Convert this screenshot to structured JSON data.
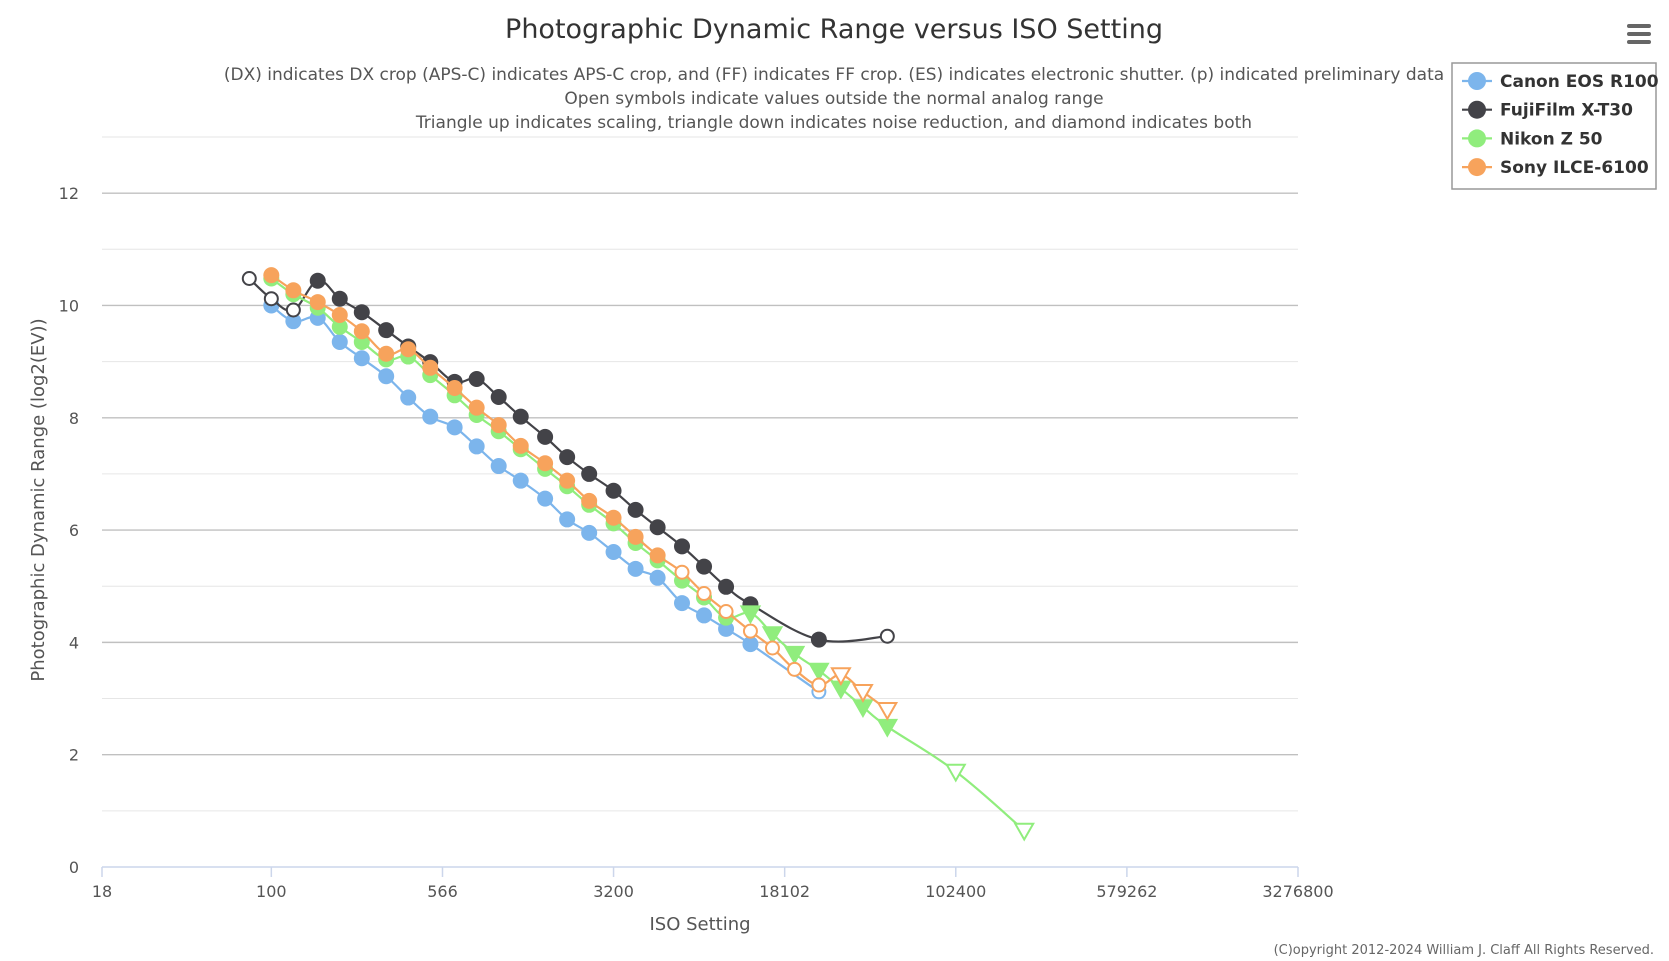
{
  "chart_data": {
    "type": "line",
    "title": "Photographic Dynamic Range versus ISO Setting",
    "subtitle": [
      "(DX) indicates DX crop (APS-C) indicates APS-C crop, and (FF) indicates FF crop. (ES) indicates electronic shutter. (p) indicated preliminary data",
      "Open symbols indicate values outside the normal analog range",
      "Triangle up indicates scaling, triangle down indicates noise reduction, and diamond indicates both"
    ],
    "xlabel": "ISO Setting",
    "ylabel": "Photographic Dynamic Range (log2(EV))",
    "x_scale": "log",
    "xlim": [
      18,
      3276800
    ],
    "x_ticks": [
      18,
      100,
      566,
      3200,
      18102,
      102400,
      579262,
      3276800
    ],
    "x_tick_labels": [
      "18",
      "100",
      "566",
      "3200",
      "18102",
      "102400",
      "579262",
      "3276800"
    ],
    "ylim": [
      0,
      13
    ],
    "y_ticks": [
      0,
      2,
      4,
      6,
      8,
      10,
      12
    ],
    "y_tick_labels": [
      "0",
      "2",
      "4",
      "6",
      "8",
      "10",
      "12"
    ],
    "legend_position": "top-right",
    "credit": "(C)opyright 2012-2024 William J. Claff All Rights Reserved.",
    "series": [
      {
        "name": "Canon EOS R100",
        "color": "#7cb5ec",
        "points": [
          {
            "x": 100,
            "y": 10.0,
            "marker": "circle",
            "open": false
          },
          {
            "x": 125,
            "y": 9.72,
            "marker": "circle",
            "open": false
          },
          {
            "x": 160,
            "y": 9.78,
            "marker": "circle",
            "open": false
          },
          {
            "x": 200,
            "y": 9.35,
            "marker": "circle",
            "open": false
          },
          {
            "x": 250,
            "y": 9.06,
            "marker": "circle",
            "open": false
          },
          {
            "x": 320,
            "y": 8.74,
            "marker": "circle",
            "open": false
          },
          {
            "x": 400,
            "y": 8.36,
            "marker": "circle",
            "open": false
          },
          {
            "x": 500,
            "y": 8.02,
            "marker": "circle",
            "open": false
          },
          {
            "x": 640,
            "y": 7.83,
            "marker": "circle",
            "open": false
          },
          {
            "x": 800,
            "y": 7.49,
            "marker": "circle",
            "open": false
          },
          {
            "x": 1000,
            "y": 7.14,
            "marker": "circle",
            "open": false
          },
          {
            "x": 1250,
            "y": 6.88,
            "marker": "circle",
            "open": false
          },
          {
            "x": 1600,
            "y": 6.56,
            "marker": "circle",
            "open": false
          },
          {
            "x": 2000,
            "y": 6.19,
            "marker": "circle",
            "open": false
          },
          {
            "x": 2500,
            "y": 5.95,
            "marker": "circle",
            "open": false
          },
          {
            "x": 3200,
            "y": 5.61,
            "marker": "circle",
            "open": false
          },
          {
            "x": 4000,
            "y": 5.31,
            "marker": "circle",
            "open": false
          },
          {
            "x": 5000,
            "y": 5.15,
            "marker": "circle",
            "open": false
          },
          {
            "x": 6400,
            "y": 4.7,
            "marker": "circle",
            "open": false
          },
          {
            "x": 8000,
            "y": 4.48,
            "marker": "circle",
            "open": false
          },
          {
            "x": 10000,
            "y": 4.24,
            "marker": "circle",
            "open": false
          },
          {
            "x": 12800,
            "y": 3.97,
            "marker": "circle",
            "open": false
          },
          {
            "x": 25600,
            "y": 3.12,
            "marker": "circle",
            "open": true
          }
        ]
      },
      {
        "name": "FujiFilm X-T30",
        "color": "#434348",
        "points": [
          {
            "x": 80,
            "y": 10.48,
            "marker": "circle",
            "open": true
          },
          {
            "x": 100,
            "y": 10.12,
            "marker": "circle",
            "open": true
          },
          {
            "x": 125,
            "y": 9.92,
            "marker": "circle",
            "open": true
          },
          {
            "x": 160,
            "y": 10.44,
            "marker": "circle",
            "open": false
          },
          {
            "x": 200,
            "y": 10.12,
            "marker": "circle",
            "open": false
          },
          {
            "x": 250,
            "y": 9.88,
            "marker": "circle",
            "open": false
          },
          {
            "x": 320,
            "y": 9.56,
            "marker": "circle",
            "open": false
          },
          {
            "x": 400,
            "y": 9.27,
            "marker": "circle",
            "open": false
          },
          {
            "x": 500,
            "y": 8.99,
            "marker": "circle",
            "open": false
          },
          {
            "x": 640,
            "y": 8.64,
            "marker": "circle",
            "open": false
          },
          {
            "x": 800,
            "y": 8.69,
            "marker": "circle",
            "open": false
          },
          {
            "x": 1000,
            "y": 8.37,
            "marker": "circle",
            "open": false
          },
          {
            "x": 1250,
            "y": 8.02,
            "marker": "circle",
            "open": false
          },
          {
            "x": 1600,
            "y": 7.66,
            "marker": "circle",
            "open": false
          },
          {
            "x": 2000,
            "y": 7.3,
            "marker": "circle",
            "open": false
          },
          {
            "x": 2500,
            "y": 7.0,
            "marker": "circle",
            "open": false
          },
          {
            "x": 3200,
            "y": 6.7,
            "marker": "circle",
            "open": false
          },
          {
            "x": 4000,
            "y": 6.36,
            "marker": "circle",
            "open": false
          },
          {
            "x": 5000,
            "y": 6.05,
            "marker": "circle",
            "open": false
          },
          {
            "x": 6400,
            "y": 5.71,
            "marker": "circle",
            "open": false
          },
          {
            "x": 8000,
            "y": 5.35,
            "marker": "circle",
            "open": false
          },
          {
            "x": 10000,
            "y": 4.99,
            "marker": "circle",
            "open": false
          },
          {
            "x": 12800,
            "y": 4.68,
            "marker": "circle",
            "open": false
          },
          {
            "x": 25600,
            "y": 4.05,
            "marker": "circle",
            "open": false
          },
          {
            "x": 51200,
            "y": 4.11,
            "marker": "circle",
            "open": true
          }
        ]
      },
      {
        "name": "Nikon Z 50",
        "color": "#90ed7d",
        "points": [
          {
            "x": 100,
            "y": 10.48,
            "marker": "circle",
            "open": false
          },
          {
            "x": 125,
            "y": 10.2,
            "marker": "circle",
            "open": false
          },
          {
            "x": 160,
            "y": 9.96,
            "marker": "circle",
            "open": false
          },
          {
            "x": 200,
            "y": 9.62,
            "marker": "circle",
            "open": false
          },
          {
            "x": 250,
            "y": 9.35,
            "marker": "circle",
            "open": false
          },
          {
            "x": 320,
            "y": 9.04,
            "marker": "circle",
            "open": false
          },
          {
            "x": 400,
            "y": 9.09,
            "marker": "circle",
            "open": false
          },
          {
            "x": 500,
            "y": 8.76,
            "marker": "circle",
            "open": false
          },
          {
            "x": 640,
            "y": 8.4,
            "marker": "circle",
            "open": false
          },
          {
            "x": 800,
            "y": 8.05,
            "marker": "circle",
            "open": false
          },
          {
            "x": 1000,
            "y": 7.76,
            "marker": "circle",
            "open": false
          },
          {
            "x": 1250,
            "y": 7.44,
            "marker": "circle",
            "open": false
          },
          {
            "x": 1600,
            "y": 7.09,
            "marker": "circle",
            "open": false
          },
          {
            "x": 2000,
            "y": 6.78,
            "marker": "circle",
            "open": false
          },
          {
            "x": 2500,
            "y": 6.45,
            "marker": "circle",
            "open": false
          },
          {
            "x": 3200,
            "y": 6.12,
            "marker": "circle",
            "open": false
          },
          {
            "x": 4000,
            "y": 5.77,
            "marker": "circle",
            "open": false
          },
          {
            "x": 5000,
            "y": 5.46,
            "marker": "circle",
            "open": false
          },
          {
            "x": 6400,
            "y": 5.1,
            "marker": "circle",
            "open": false
          },
          {
            "x": 8000,
            "y": 4.8,
            "marker": "circle",
            "open": false
          },
          {
            "x": 10000,
            "y": 4.44,
            "marker": "circle",
            "open": false
          },
          {
            "x": 12800,
            "y": 4.52,
            "marker": "triangle-down",
            "open": false
          },
          {
            "x": 16000,
            "y": 4.15,
            "marker": "triangle-down",
            "open": false
          },
          {
            "x": 20000,
            "y": 3.8,
            "marker": "triangle-down",
            "open": false
          },
          {
            "x": 25600,
            "y": 3.5,
            "marker": "triangle-down",
            "open": false
          },
          {
            "x": 32000,
            "y": 3.18,
            "marker": "triangle-down",
            "open": false
          },
          {
            "x": 40000,
            "y": 2.85,
            "marker": "triangle-down",
            "open": false
          },
          {
            "x": 51200,
            "y": 2.5,
            "marker": "triangle-down",
            "open": false
          },
          {
            "x": 102400,
            "y": 1.7,
            "marker": "triangle-down",
            "open": true
          },
          {
            "x": 204800,
            "y": 0.65,
            "marker": "triangle-down",
            "open": true
          }
        ]
      },
      {
        "name": "Sony ILCE-6100",
        "color": "#f7a35c",
        "points": [
          {
            "x": 100,
            "y": 10.54,
            "marker": "circle",
            "open": false
          },
          {
            "x": 125,
            "y": 10.27,
            "marker": "circle",
            "open": false
          },
          {
            "x": 160,
            "y": 10.06,
            "marker": "circle",
            "open": false
          },
          {
            "x": 200,
            "y": 9.83,
            "marker": "circle",
            "open": false
          },
          {
            "x": 250,
            "y": 9.54,
            "marker": "circle",
            "open": false
          },
          {
            "x": 320,
            "y": 9.14,
            "marker": "circle",
            "open": false
          },
          {
            "x": 400,
            "y": 9.22,
            "marker": "circle",
            "open": false
          },
          {
            "x": 500,
            "y": 8.89,
            "marker": "circle",
            "open": false
          },
          {
            "x": 640,
            "y": 8.53,
            "marker": "circle",
            "open": false
          },
          {
            "x": 800,
            "y": 8.18,
            "marker": "circle",
            "open": false
          },
          {
            "x": 1000,
            "y": 7.87,
            "marker": "circle",
            "open": false
          },
          {
            "x": 1250,
            "y": 7.5,
            "marker": "circle",
            "open": false
          },
          {
            "x": 1600,
            "y": 7.19,
            "marker": "circle",
            "open": false
          },
          {
            "x": 2000,
            "y": 6.88,
            "marker": "circle",
            "open": false
          },
          {
            "x": 2500,
            "y": 6.52,
            "marker": "circle",
            "open": false
          },
          {
            "x": 3200,
            "y": 6.22,
            "marker": "circle",
            "open": false
          },
          {
            "x": 4000,
            "y": 5.88,
            "marker": "circle",
            "open": false
          },
          {
            "x": 5000,
            "y": 5.55,
            "marker": "circle",
            "open": false
          },
          {
            "x": 6400,
            "y": 5.25,
            "marker": "circle",
            "open": true
          },
          {
            "x": 8000,
            "y": 4.87,
            "marker": "circle",
            "open": true
          },
          {
            "x": 10000,
            "y": 4.55,
            "marker": "circle",
            "open": true
          },
          {
            "x": 12800,
            "y": 4.2,
            "marker": "circle",
            "open": true
          },
          {
            "x": 16000,
            "y": 3.9,
            "marker": "circle",
            "open": true
          },
          {
            "x": 20000,
            "y": 3.52,
            "marker": "circle",
            "open": true
          },
          {
            "x": 25600,
            "y": 3.24,
            "marker": "circle",
            "open": true
          },
          {
            "x": 32000,
            "y": 3.42,
            "marker": "triangle-down",
            "open": true
          },
          {
            "x": 40000,
            "y": 3.12,
            "marker": "triangle-down",
            "open": true
          },
          {
            "x": 51200,
            "y": 2.8,
            "marker": "triangle-down",
            "open": true
          }
        ]
      }
    ]
  }
}
